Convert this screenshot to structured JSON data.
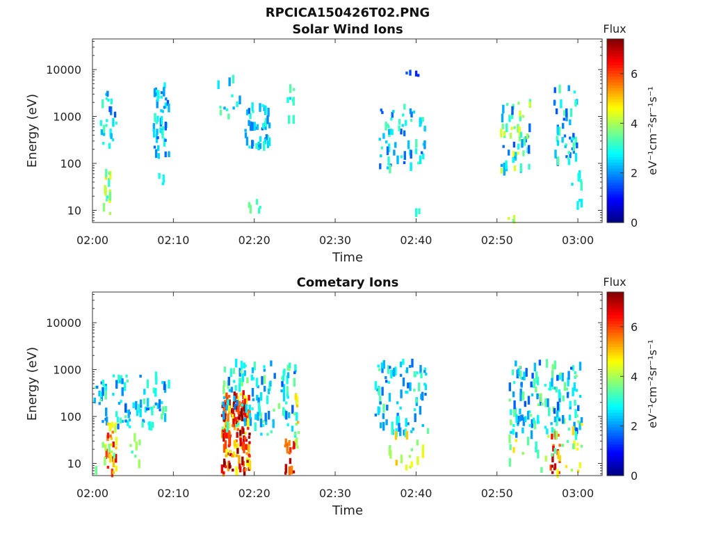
{
  "figure": {
    "title": "RPCICA150426T02.PNG"
  },
  "colors": {
    "colormap": [
      "#00007f",
      "#0000ff",
      "#007fff",
      "#00ffff",
      "#7fff7f",
      "#ffff00",
      "#ff7f00",
      "#ff0000",
      "#7f0000"
    ],
    "axis": "#333333",
    "background": "#ffffff"
  },
  "chart_data": [
    {
      "type": "heatmap",
      "title": "Solar Wind Ions",
      "xlabel": "Time",
      "ylabel": "Energy (eV)",
      "x_ticks": [
        "02:00",
        "02:10",
        "02:20",
        "02:30",
        "02:40",
        "02:50",
        "03:00"
      ],
      "xlim_minutes": [
        0,
        63
      ],
      "y_ticks": [
        "10",
        "100",
        "1000",
        "10000"
      ],
      "y_tick_values": [
        10,
        100,
        1000,
        10000
      ],
      "y_scale": "log",
      "ylim": [
        5.5,
        45000
      ],
      "colorbar": {
        "title": "Flux",
        "label": "eV⁻¹cm⁻²sr⁻¹s⁻¹",
        "ticks": [
          "0",
          "2",
          "4",
          "6"
        ],
        "tick_values": [
          0,
          2,
          4,
          6
        ],
        "range": [
          0,
          7.4
        ]
      },
      "clusters": [
        {
          "t": [
            0.8,
            3.0
          ],
          "e": [
            180,
            3500
          ],
          "flux": [
            1.5,
            3.5
          ],
          "n": 22
        },
        {
          "t": [
            1.3,
            2.6
          ],
          "e": [
            6,
            90
          ],
          "flux": [
            3.0,
            4.8
          ],
          "n": 14
        },
        {
          "t": [
            7.5,
            9.5
          ],
          "e": [
            140,
            4800
          ],
          "flux": [
            1.5,
            3.2
          ],
          "n": 42
        },
        {
          "t": [
            8.2,
            8.8
          ],
          "e": [
            25,
            55
          ],
          "flux": [
            2.5,
            3.0
          ],
          "n": 4
        },
        {
          "t": [
            15.5,
            18.5
          ],
          "e": [
            900,
            6500
          ],
          "flux": [
            2.0,
            3.5
          ],
          "n": 12
        },
        {
          "t": [
            18.9,
            22.0
          ],
          "e": [
            220,
            2000
          ],
          "flux": [
            1.5,
            3.3
          ],
          "n": 45
        },
        {
          "t": [
            18.9,
            21.3
          ],
          "e": [
            6,
            55
          ],
          "flux": [
            3.0,
            3.6
          ],
          "n": 5
        },
        {
          "t": [
            24.0,
            24.9
          ],
          "e": [
            700,
            4000
          ],
          "flux": [
            2.5,
            3.5
          ],
          "n": 8
        },
        {
          "t": [
            35.5,
            41.2
          ],
          "e": [
            70,
            1800
          ],
          "flux": [
            1.5,
            3.5
          ],
          "n": 60
        },
        {
          "t": [
            37.5,
            40.5
          ],
          "e": [
            7000,
            9000
          ],
          "flux": [
            1.0,
            1.8
          ],
          "n": 4
        },
        {
          "t": [
            40.0,
            40.6
          ],
          "e": [
            6,
            10
          ],
          "flux": [
            3.0,
            3.2
          ],
          "n": 2
        },
        {
          "t": [
            50.5,
            54.2
          ],
          "e": [
            60,
            2200
          ],
          "flux": [
            1.5,
            4.6
          ],
          "n": 55
        },
        {
          "t": [
            50.8,
            53.0
          ],
          "e": [
            6,
            7
          ],
          "flux": [
            3.0,
            4.5
          ],
          "n": 3
        },
        {
          "t": [
            57.0,
            60.0
          ],
          "e": [
            100,
            4500
          ],
          "flux": [
            1.5,
            3.5
          ],
          "n": 45
        },
        {
          "t": [
            58.8,
            60.5
          ],
          "e": [
            6,
            60
          ],
          "flux": [
            2.5,
            3.2
          ],
          "n": 8
        }
      ]
    },
    {
      "type": "heatmap",
      "title": "Cometary Ions",
      "xlabel": "Time",
      "ylabel": "Energy (eV)",
      "x_ticks": [
        "02:00",
        "02:10",
        "02:20",
        "02:30",
        "02:40",
        "02:50",
        "03:00"
      ],
      "xlim_minutes": [
        0,
        63
      ],
      "y_ticks": [
        "10",
        "100",
        "1000",
        "10000"
      ],
      "y_tick_values": [
        10,
        100,
        1000,
        10000
      ],
      "y_scale": "log",
      "ylim": [
        5.5,
        45000
      ],
      "colorbar": {
        "title": "Flux",
        "label": "eV⁻¹cm⁻²sr⁻¹s⁻¹",
        "ticks": [
          "0",
          "2",
          "4",
          "6"
        ],
        "tick_values": [
          0,
          2,
          4,
          6
        ],
        "range": [
          0,
          7.4
        ]
      },
      "clusters": [
        {
          "t": [
            0.0,
            9.5
          ],
          "e": [
            60,
            800
          ],
          "flux": [
            1.5,
            3.5
          ],
          "n": 90
        },
        {
          "t": [
            1.5,
            3.0
          ],
          "e": [
            6,
            80
          ],
          "flux": [
            4.0,
            6.8
          ],
          "n": 30
        },
        {
          "t": [
            0.3,
            9.0
          ],
          "e": [
            6,
            40
          ],
          "flux": [
            3.0,
            4.0
          ],
          "n": 12
        },
        {
          "t": [
            16.0,
            19.5
          ],
          "e": [
            6,
            300
          ],
          "flux": [
            4.5,
            7.4
          ],
          "n": 170
        },
        {
          "t": [
            16.0,
            25.5
          ],
          "e": [
            40,
            1400
          ],
          "flux": [
            1.5,
            3.8
          ],
          "n": 120
        },
        {
          "t": [
            23.8,
            25.0
          ],
          "e": [
            6,
            30
          ],
          "flux": [
            5.5,
            7.2
          ],
          "n": 18
        },
        {
          "t": [
            25.0,
            25.6
          ],
          "e": [
            15,
            300
          ],
          "flux": [
            3.5,
            5.2
          ],
          "n": 10
        },
        {
          "t": [
            35.0,
            41.5
          ],
          "e": [
            40,
            1500
          ],
          "flux": [
            1.5,
            3.5
          ],
          "n": 85
        },
        {
          "t": [
            36.5,
            41.0
          ],
          "e": [
            6,
            40
          ],
          "flux": [
            3.5,
            5.2
          ],
          "n": 16
        },
        {
          "t": [
            51.5,
            60.5
          ],
          "e": [
            40,
            1500
          ],
          "flux": [
            1.5,
            3.8
          ],
          "n": 140
        },
        {
          "t": [
            56.5,
            58.0
          ],
          "e": [
            6,
            40
          ],
          "flux": [
            5.5,
            7.2
          ],
          "n": 16
        },
        {
          "t": [
            51.5,
            60.5
          ],
          "e": [
            6,
            80
          ],
          "flux": [
            3.0,
            5.2
          ],
          "n": 35
        }
      ]
    }
  ]
}
